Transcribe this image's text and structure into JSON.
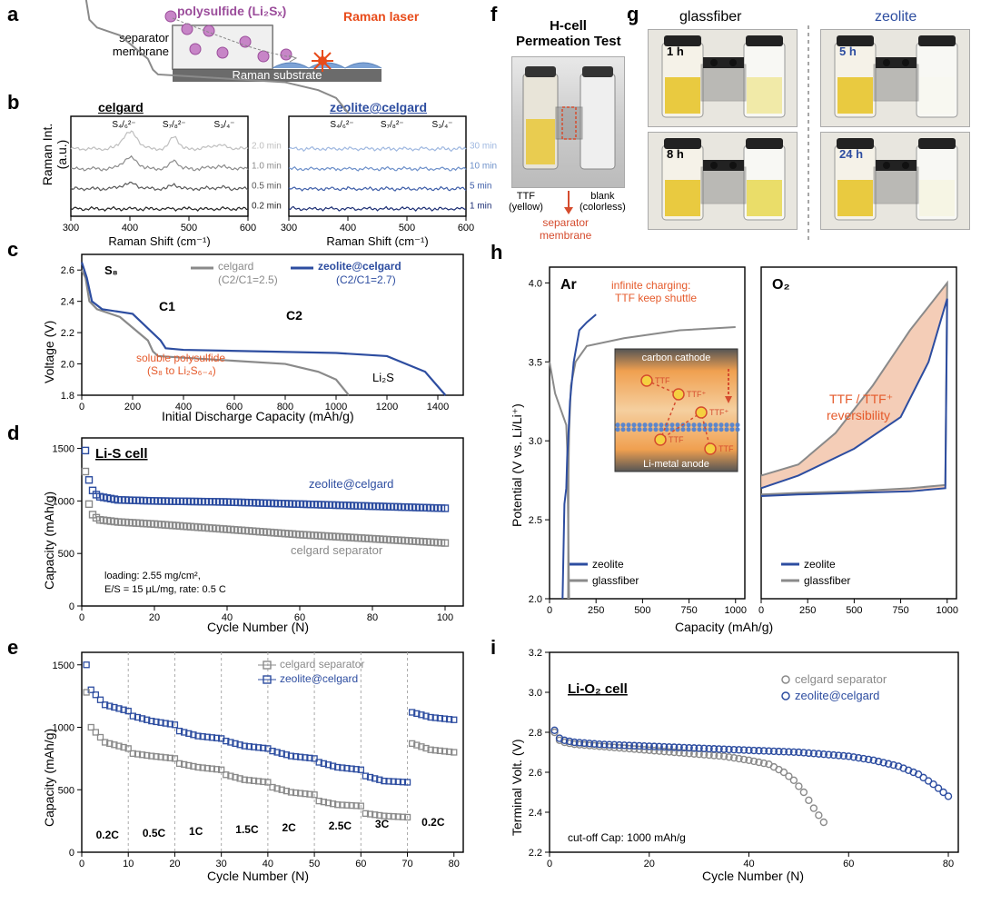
{
  "labels": {
    "a": "a",
    "b": "b",
    "c": "c",
    "d": "d",
    "e": "e",
    "f": "f",
    "g": "g",
    "h": "h",
    "i": "i"
  },
  "panelA": {
    "polysulfide_text": "polysulfide (Li₂Sₓ)",
    "polysulfide_color": "#9b4d9b",
    "raman_laser_text": "Raman laser",
    "raman_laser_color": "#e84b1a",
    "separator_text": "separator\nmembrane",
    "substrate_text": "Raman substrate",
    "substrate_color": "#6b6b6b",
    "membrane_color": "#cccccc",
    "polysulfide_dot_color": "#c785c7"
  },
  "panelB": {
    "left_title": "celgard",
    "right_title": "zeolite@celgard",
    "y_label": "Raman Int.\n(a.u.)",
    "x_label": "Raman Shift (cm⁻¹)",
    "x_ticks": [
      300,
      400,
      500,
      600
    ],
    "left_times": [
      "2.0 min",
      "1.0 min",
      "0.5 min",
      "0.2 min"
    ],
    "left_colors": [
      "#bfbfbf",
      "#8c8c8c",
      "#595959",
      "#262626"
    ],
    "right_times": [
      "30 min",
      "10 min",
      "5 min",
      "1 min"
    ],
    "right_colors": [
      "#9fb8e0",
      "#6c8fc9",
      "#3e5ea8",
      "#1c2e73"
    ],
    "peak_labels": [
      "S₄/₆²⁻",
      "S₇/₈²⁻",
      "S₃/₄⁻"
    ]
  },
  "panelC": {
    "y_label": "Voltage (V)",
    "x_label": "Initial Discharge Capacity (mAh/g)",
    "y_ticks": [
      1.8,
      2.0,
      2.2,
      2.4,
      2.6
    ],
    "x_ticks": [
      0,
      200,
      400,
      600,
      800,
      1000,
      1200,
      1400
    ],
    "celgard_text": "celgard\n(C2/C1=2.5)",
    "celgard_color": "#8a8a8a",
    "zeolite_text": "zeolite@celgard\n(C2/C1=2.7)",
    "zeolite_color": "#2d4da0",
    "s8_text": "S₈",
    "c1_text": "C1",
    "c2_text": "C2",
    "li2s_text": "Li₂S",
    "soluble_text": "soluble polysulfide\n(S₈ to Li₂S₆₋₄)",
    "soluble_color": "#e55a2b",
    "celgard_curve": [
      [
        0,
        2.6
      ],
      [
        15,
        2.55
      ],
      [
        30,
        2.4
      ],
      [
        60,
        2.35
      ],
      [
        150,
        2.3
      ],
      [
        260,
        2.15
      ],
      [
        280,
        2.08
      ],
      [
        300,
        2.05
      ],
      [
        400,
        2.04
      ],
      [
        600,
        2.02
      ],
      [
        800,
        2.0
      ],
      [
        930,
        1.95
      ],
      [
        1000,
        1.9
      ],
      [
        1050,
        1.8
      ]
    ],
    "zeolite_curve": [
      [
        0,
        2.65
      ],
      [
        20,
        2.55
      ],
      [
        40,
        2.4
      ],
      [
        80,
        2.35
      ],
      [
        200,
        2.32
      ],
      [
        310,
        2.15
      ],
      [
        330,
        2.1
      ],
      [
        400,
        2.09
      ],
      [
        700,
        2.08
      ],
      [
        1000,
        2.07
      ],
      [
        1200,
        2.05
      ],
      [
        1350,
        1.95
      ],
      [
        1430,
        1.8
      ]
    ]
  },
  "panelD": {
    "y_label": "Capacity (mAh/g)",
    "x_label": "Cycle Number (N)",
    "y_ticks": [
      0,
      500,
      1000,
      1500
    ],
    "x_ticks": [
      0,
      20,
      40,
      60,
      80,
      100
    ],
    "title": "Li-S cell",
    "caption": "loading: 2.55 mg/cm²,\nE/S = 15 µL/mg, rate: 0.5 C",
    "zeolite_label": "zeolite@celgard",
    "celgard_label": "celgard separator",
    "zeolite_color": "#2d4da0",
    "celgard_color": "#8a8a8a",
    "zeolite_data": [
      [
        1,
        1480
      ],
      [
        2,
        1200
      ],
      [
        3,
        1100
      ],
      [
        4,
        1060
      ],
      [
        5,
        1040
      ],
      [
        10,
        1010
      ],
      [
        20,
        1000
      ],
      [
        40,
        990
      ],
      [
        60,
        970
      ],
      [
        80,
        950
      ],
      [
        100,
        930
      ]
    ],
    "celgard_data": [
      [
        1,
        1280
      ],
      [
        2,
        970
      ],
      [
        3,
        870
      ],
      [
        4,
        840
      ],
      [
        5,
        820
      ],
      [
        10,
        800
      ],
      [
        20,
        780
      ],
      [
        40,
        730
      ],
      [
        60,
        680
      ],
      [
        80,
        640
      ],
      [
        100,
        600
      ]
    ]
  },
  "panelE": {
    "y_label": "Capacity (mAh/g)",
    "x_label": "Cycle Number (N)",
    "y_ticks": [
      0,
      500,
      1000,
      1500
    ],
    "x_ticks": [
      0,
      10,
      20,
      30,
      40,
      50,
      60,
      70,
      80
    ],
    "rates": [
      "0.2C",
      "0.5C",
      "1C",
      "1.5C",
      "2C",
      "2.5C",
      "3C",
      "0.2C"
    ],
    "divisions": [
      10,
      20,
      30,
      40,
      50,
      60,
      70
    ],
    "zeolite_color": "#2d4da0",
    "celgard_color": "#8a8a8a",
    "zeolite_label": "zeolite@celgard",
    "celgard_label": "celgard separator",
    "zeolite_data": [
      [
        1,
        1500
      ],
      [
        2,
        1300
      ],
      [
        5,
        1180
      ],
      [
        10,
        1130
      ],
      [
        11,
        1090
      ],
      [
        15,
        1050
      ],
      [
        20,
        1020
      ],
      [
        21,
        970
      ],
      [
        25,
        930
      ],
      [
        30,
        910
      ],
      [
        31,
        890
      ],
      [
        35,
        850
      ],
      [
        40,
        830
      ],
      [
        41,
        810
      ],
      [
        45,
        770
      ],
      [
        50,
        750
      ],
      [
        51,
        720
      ],
      [
        55,
        680
      ],
      [
        60,
        660
      ],
      [
        61,
        610
      ],
      [
        65,
        570
      ],
      [
        70,
        560
      ],
      [
        71,
        1120
      ],
      [
        75,
        1080
      ],
      [
        80,
        1060
      ]
    ],
    "celgard_data": [
      [
        1,
        1280
      ],
      [
        2,
        1000
      ],
      [
        5,
        880
      ],
      [
        10,
        830
      ],
      [
        11,
        790
      ],
      [
        15,
        770
      ],
      [
        20,
        750
      ],
      [
        21,
        710
      ],
      [
        25,
        680
      ],
      [
        30,
        660
      ],
      [
        31,
        620
      ],
      [
        35,
        580
      ],
      [
        40,
        560
      ],
      [
        41,
        520
      ],
      [
        45,
        480
      ],
      [
        50,
        460
      ],
      [
        51,
        410
      ],
      [
        55,
        380
      ],
      [
        60,
        370
      ],
      [
        61,
        310
      ],
      [
        65,
        290
      ],
      [
        70,
        280
      ],
      [
        71,
        870
      ],
      [
        75,
        820
      ],
      [
        80,
        800
      ]
    ]
  },
  "panelF": {
    "title": "H-cell\nPermeation Test",
    "ttf_label": "TTF\n(yellow)",
    "blank_label": "blank\n(colorless)",
    "separator_label": "separator\nmembrane",
    "arrow_color": "#d54c2e"
  },
  "panelG": {
    "glassfiber_title": "glassfiber",
    "zeolite_title": "zeolite",
    "zeolite_title_color": "#2d4da0",
    "glass_times": [
      "1 h",
      "8 h"
    ],
    "zeo_times": [
      "5 h",
      "24 h"
    ],
    "ttf_color": "#e8c52e"
  },
  "panelH": {
    "y_label": "Potential (V vs. Li/Li⁺)",
    "x_label": "Capacity (mAh/g)",
    "y_ticks": [
      2.0,
      2.5,
      3.0,
      3.5,
      4.0
    ],
    "x_ticks": [
      0,
      250,
      500,
      750,
      1000
    ],
    "ar_label": "Ar",
    "o2_label": "O₂",
    "infinite_text": "infinite charging:\nTTF keep shuttle",
    "infinite_color": "#e55a2b",
    "ttf_text": "TTF / TTF⁺\nreversibility",
    "carbon_text": "carbon cathode",
    "anode_text": "Li-metal anode",
    "ttf_labels": [
      "TTF",
      "TTF⁺",
      "TTF",
      "TTF⁺",
      "TTF"
    ],
    "zeolite_color": "#2d4da0",
    "glassfiber_color": "#8a8a8a",
    "shade_color": "#f2c4aa",
    "zeolite_legend": "zeolite",
    "glassfiber_legend": "glassfiber",
    "ar_zeolite": [
      [
        70,
        2.0
      ],
      [
        80,
        2.6
      ],
      [
        90,
        2.7
      ],
      [
        95,
        2.9
      ],
      [
        100,
        3.0
      ],
      [
        110,
        3.25
      ],
      [
        130,
        3.5
      ],
      [
        160,
        3.7
      ],
      [
        200,
        3.75
      ],
      [
        230,
        3.78
      ],
      [
        250,
        3.8
      ]
    ],
    "ar_glass_charge": [
      [
        100,
        2.0
      ],
      [
        102,
        2.8
      ],
      [
        105,
        3.05
      ],
      [
        115,
        3.35
      ],
      [
        140,
        3.5
      ],
      [
        200,
        3.6
      ],
      [
        400,
        3.65
      ],
      [
        700,
        3.7
      ],
      [
        1000,
        3.72
      ]
    ],
    "ar_glass_discharge": [
      [
        0,
        3.5
      ],
      [
        30,
        3.3
      ],
      [
        60,
        3.2
      ],
      [
        90,
        3.1
      ],
      [
        95,
        2.95
      ],
      [
        100,
        2.5
      ],
      [
        105,
        2.0
      ]
    ],
    "o2_zeo_charge": [
      [
        0,
        2.7
      ],
      [
        200,
        2.78
      ],
      [
        500,
        2.95
      ],
      [
        750,
        3.15
      ],
      [
        900,
        3.5
      ],
      [
        1000,
        3.9
      ]
    ],
    "o2_zeo_discharge": [
      [
        1000,
        3.9
      ],
      [
        990,
        2.7
      ],
      [
        800,
        2.68
      ],
      [
        500,
        2.67
      ],
      [
        200,
        2.66
      ],
      [
        0,
        2.65
      ]
    ],
    "o2_glass_charge": [
      [
        0,
        2.78
      ],
      [
        200,
        2.85
      ],
      [
        400,
        3.05
      ],
      [
        600,
        3.35
      ],
      [
        800,
        3.7
      ],
      [
        1000,
        4.0
      ]
    ],
    "o2_glass_discharge": [
      [
        1000,
        4.0
      ],
      [
        990,
        2.72
      ],
      [
        800,
        2.7
      ],
      [
        500,
        2.68
      ],
      [
        200,
        2.67
      ],
      [
        0,
        2.66
      ]
    ]
  },
  "panelI": {
    "y_label": "Terminal Volt. (V)",
    "x_label": "Cycle Number (N)",
    "y_ticks": [
      2.2,
      2.4,
      2.6,
      2.8,
      3.0,
      3.2
    ],
    "x_ticks": [
      0,
      20,
      40,
      60,
      80
    ],
    "title": "Li-O₂ cell",
    "zeolite_label": "zeolite@celgard",
    "celgard_label": "celgard separator",
    "caption": "cut-off Cap: 1000 mAh/g",
    "zeolite_color": "#2d4da0",
    "celgard_color": "#8a8a8a",
    "celgard_data": [
      [
        1,
        2.8
      ],
      [
        2,
        2.76
      ],
      [
        3,
        2.75
      ],
      [
        5,
        2.74
      ],
      [
        10,
        2.73
      ],
      [
        15,
        2.72
      ],
      [
        20,
        2.71
      ],
      [
        25,
        2.7
      ],
      [
        30,
        2.69
      ],
      [
        35,
        2.68
      ],
      [
        40,
        2.66
      ],
      [
        44,
        2.64
      ],
      [
        47,
        2.6
      ],
      [
        49,
        2.56
      ],
      [
        51,
        2.5
      ],
      [
        53,
        2.42
      ],
      [
        55,
        2.35
      ]
    ],
    "zeolite_data": [
      [
        1,
        2.81
      ],
      [
        2,
        2.77
      ],
      [
        3,
        2.76
      ],
      [
        5,
        2.75
      ],
      [
        10,
        2.74
      ],
      [
        20,
        2.73
      ],
      [
        30,
        2.72
      ],
      [
        40,
        2.71
      ],
      [
        50,
        2.7
      ],
      [
        55,
        2.69
      ],
      [
        60,
        2.68
      ],
      [
        65,
        2.66
      ],
      [
        70,
        2.63
      ],
      [
        74,
        2.59
      ],
      [
        77,
        2.54
      ],
      [
        80,
        2.48
      ]
    ]
  }
}
